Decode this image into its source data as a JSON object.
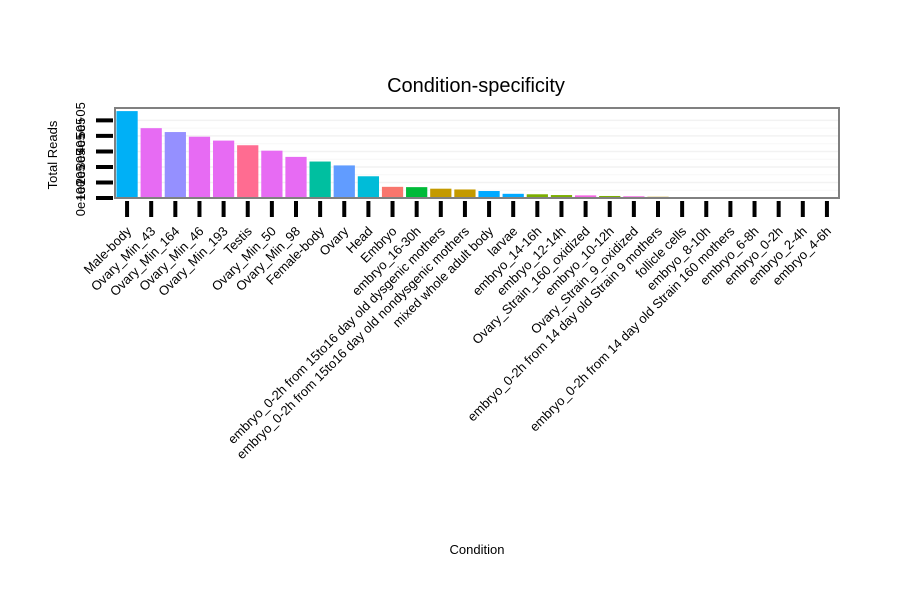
{
  "chart_data": {
    "type": "bar",
    "title": "Condition-specificity",
    "xlabel": "Condition",
    "ylabel": "Total Reads",
    "ylim": [
      0,
      580000
    ],
    "yticks": [
      0,
      100000,
      200000,
      300000,
      400000,
      500000
    ],
    "ytick_labels": [
      "0e+00",
      "1e+05",
      "2e+05",
      "3e+05",
      "4e+05",
      "5e+05"
    ],
    "grid": true,
    "legend": "none",
    "categories": [
      "Male-body",
      "Ovary_Min_43",
      "Ovary_Min_164",
      "Ovary_Min_46",
      "Ovary_Min_193",
      "Testis",
      "Ovary_Min_50",
      "Ovary_Min_98",
      "Female-body",
      "Ovary",
      "Head",
      "Embryo",
      "embryo_16-30h",
      "embryo_0-2h from 15to16 day old dysgenic mothers",
      "embryo_0-2h from 15to16 day old nondysgenic mothers",
      "mixed whole adult body",
      "larvae",
      "embryo_14-16h",
      "embryo_12-14h",
      "Ovary_Strain_160_oxidized",
      "embryo_10-12h",
      "Ovary_Strain_9_oxidized",
      "embryo_0-2h from 14 day old Strain 9 mothers",
      "follicle cells",
      "embryo_8-10h",
      "embryo_0-2h from 14 day old Strain 160 mothers",
      "embryo_6-8h",
      "embryo_0-2h",
      "embryo_2-4h",
      "embryo_4-6h"
    ],
    "values": [
      560000,
      450000,
      425000,
      395000,
      370000,
      340000,
      305000,
      265000,
      235000,
      210000,
      140000,
      72000,
      70000,
      60000,
      55000,
      45000,
      27000,
      24000,
      19000,
      17000,
      13000,
      11000,
      8000,
      6000,
      5000,
      4000,
      2000,
      1500,
      1000,
      500
    ],
    "colors": [
      "#00B0F6",
      "#E76BF3",
      "#9590FF",
      "#E76BF3",
      "#E76BF3",
      "#FF6C91",
      "#E76BF3",
      "#E76BF3",
      "#00BFA0",
      "#619CFF",
      "#00BCD8",
      "#F8766D",
      "#00BA38",
      "#C49A00",
      "#C49A00",
      "#00A9FF",
      "#00A9FF",
      "#7CAE00",
      "#7CAE00",
      "#F564E3",
      "#7CAE00",
      "#F564E3",
      "#C49A00",
      "#00C08B",
      "#7CAE00",
      "#C49A00",
      "#7CAE00",
      "#7CAE00",
      "#7CAE00",
      "#7CAE00"
    ]
  }
}
